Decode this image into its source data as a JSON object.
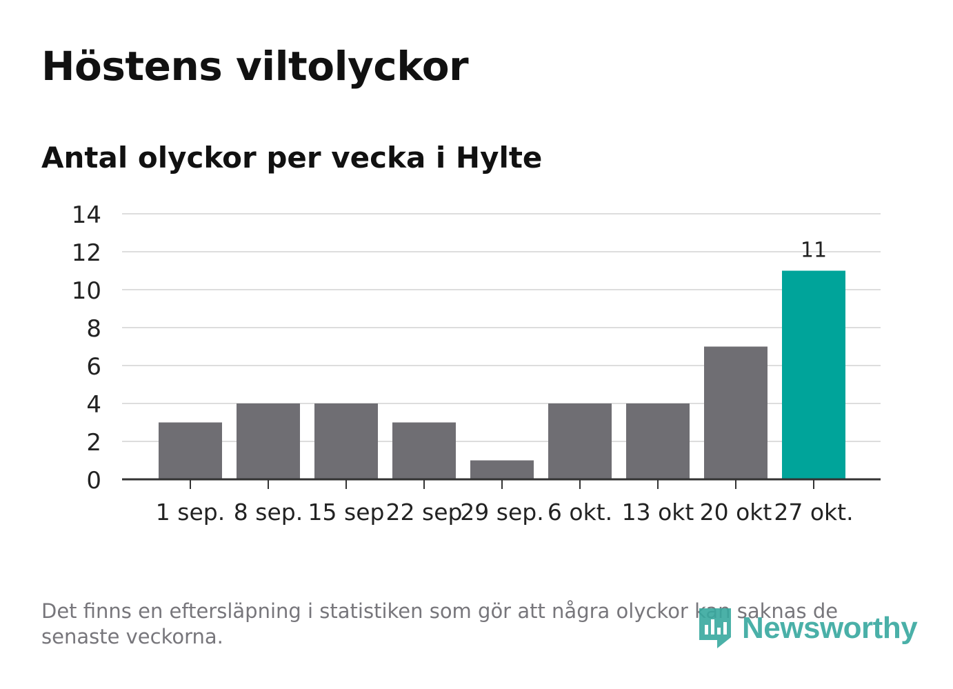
{
  "header": {
    "title": "Höstens viltolyckor",
    "subtitle": "Antal olyckor per vecka i Hylte"
  },
  "footer": {
    "note": "Det finns en eftersläpning i statistiken som gör att några olyckor kan saknas de senaste veckorna.",
    "logo_text": "Newsworthy"
  },
  "colors": {
    "bar": "#6f6e73",
    "highlight": "#00a49a",
    "grid": "#dddddd",
    "axis": "#333333",
    "logo": "#37a89f"
  },
  "chart_data": {
    "type": "bar",
    "title": "Höstens viltolyckor",
    "subtitle": "Antal olyckor per vecka i Hylte",
    "categories": [
      "1 sep.",
      "8 sep.",
      "15 sep",
      "22 sep",
      "29 sep.",
      "6 okt.",
      "13 okt",
      "20 okt",
      "27 okt."
    ],
    "values": [
      3,
      4,
      4,
      3,
      1,
      4,
      4,
      7,
      11
    ],
    "highlight_index": 8,
    "data_labels": [
      {
        "index": 8,
        "text": "11"
      }
    ],
    "ylim": [
      0,
      14
    ],
    "yticks": [
      0,
      2,
      4,
      6,
      8,
      10,
      12,
      14
    ],
    "xlabel": "",
    "ylabel": "",
    "grid": true,
    "legend": "none"
  }
}
